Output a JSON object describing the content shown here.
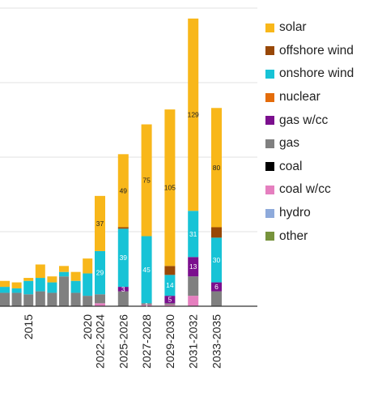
{
  "chart_data": {
    "type": "bar",
    "stacked": true,
    "title": "",
    "xlabel": "",
    "ylabel": "",
    "ylim": [
      0,
      200
    ],
    "grid": true,
    "legend_position": "right",
    "categories": [
      "",
      "",
      "2015",
      "",
      "",
      "",
      "",
      "2020",
      "2022-2024",
      "2025-2026",
      "2027-2028",
      "2029-2030",
      "2031-2032",
      "2033-2035"
    ],
    "series": [
      {
        "name": "other",
        "color": "#77933c",
        "values": [
          0,
          0,
          0,
          0,
          0,
          0,
          0,
          0,
          0,
          0,
          0,
          0,
          0,
          0
        ]
      },
      {
        "name": "hydro",
        "color": "#8eaadb",
        "values": [
          0,
          0,
          0,
          0,
          0,
          0,
          0,
          0,
          0,
          0,
          0,
          0,
          0,
          0
        ]
      },
      {
        "name": "coal w/cc",
        "color": "#e57fbf",
        "values": [
          0,
          0,
          0,
          0,
          0,
          0,
          0,
          0,
          2,
          0,
          1,
          1,
          7,
          0
        ]
      },
      {
        "name": "coal",
        "color": "#000000",
        "values": [
          0,
          0,
          0,
          0,
          0,
          0,
          0,
          0,
          0,
          0,
          0,
          0,
          0,
          0
        ]
      },
      {
        "name": "gas",
        "color": "#808080",
        "values": [
          9,
          9,
          8,
          10,
          9,
          20,
          9,
          7,
          6,
          10,
          1,
          1,
          13,
          10
        ]
      },
      {
        "name": "gas w/cc",
        "color": "#7b0f8e",
        "values": [
          0,
          0,
          0,
          0,
          0,
          0,
          0,
          0,
          0,
          3,
          0,
          5,
          13,
          6
        ]
      },
      {
        "name": "nuclear",
        "color": "#e46c0a",
        "values": [
          0,
          0,
          0,
          0,
          0,
          0,
          0,
          0,
          0,
          0,
          0,
          0,
          0,
          0
        ]
      },
      {
        "name": "onshore wind",
        "color": "#17c3d6",
        "values": [
          4,
          3,
          9,
          9,
          7,
          3,
          8,
          15,
          29,
          39,
          45,
          14,
          31,
          30
        ]
      },
      {
        "name": "offshore wind",
        "color": "#984807",
        "values": [
          0,
          0,
          0,
          0,
          0,
          0,
          0,
          0,
          0,
          1,
          0,
          6,
          0,
          7
        ]
      },
      {
        "name": "solar",
        "color": "#f8b71a",
        "values": [
          4,
          4,
          2,
          9,
          4,
          4,
          6,
          10,
          37,
          49,
          75,
          105,
          129,
          80
        ]
      }
    ],
    "data_labels": {
      "solar": [
        null,
        null,
        null,
        null,
        null,
        null,
        null,
        null,
        "37",
        "49",
        "75",
        "105",
        "129",
        "80"
      ],
      "onshore wind": [
        null,
        null,
        null,
        null,
        null,
        null,
        null,
        null,
        "29",
        "39",
        "45",
        "14",
        "31",
        "30"
      ],
      "gas w/cc": [
        null,
        null,
        null,
        null,
        null,
        null,
        null,
        null,
        null,
        "3",
        null,
        "5",
        "13",
        "6"
      ],
      "coal w/cc": [
        null,
        null,
        null,
        null,
        null,
        null,
        null,
        null,
        null,
        null,
        "1",
        null,
        null,
        null
      ]
    }
  },
  "legend": [
    {
      "label": "solar",
      "color": "#f8b71a"
    },
    {
      "label": "offshore wind",
      "color": "#984807"
    },
    {
      "label": "onshore wind",
      "color": "#17c3d6"
    },
    {
      "label": "nuclear",
      "color": "#e46c0a"
    },
    {
      "label": "gas w/cc",
      "color": "#7b0f8e"
    },
    {
      "label": "gas",
      "color": "#808080"
    },
    {
      "label": "coal",
      "color": "#000000"
    },
    {
      "label": "coal w/cc",
      "color": "#e57fbf"
    },
    {
      "label": "hydro",
      "color": "#8eaadb"
    },
    {
      "label": "other",
      "color": "#77933c"
    }
  ]
}
